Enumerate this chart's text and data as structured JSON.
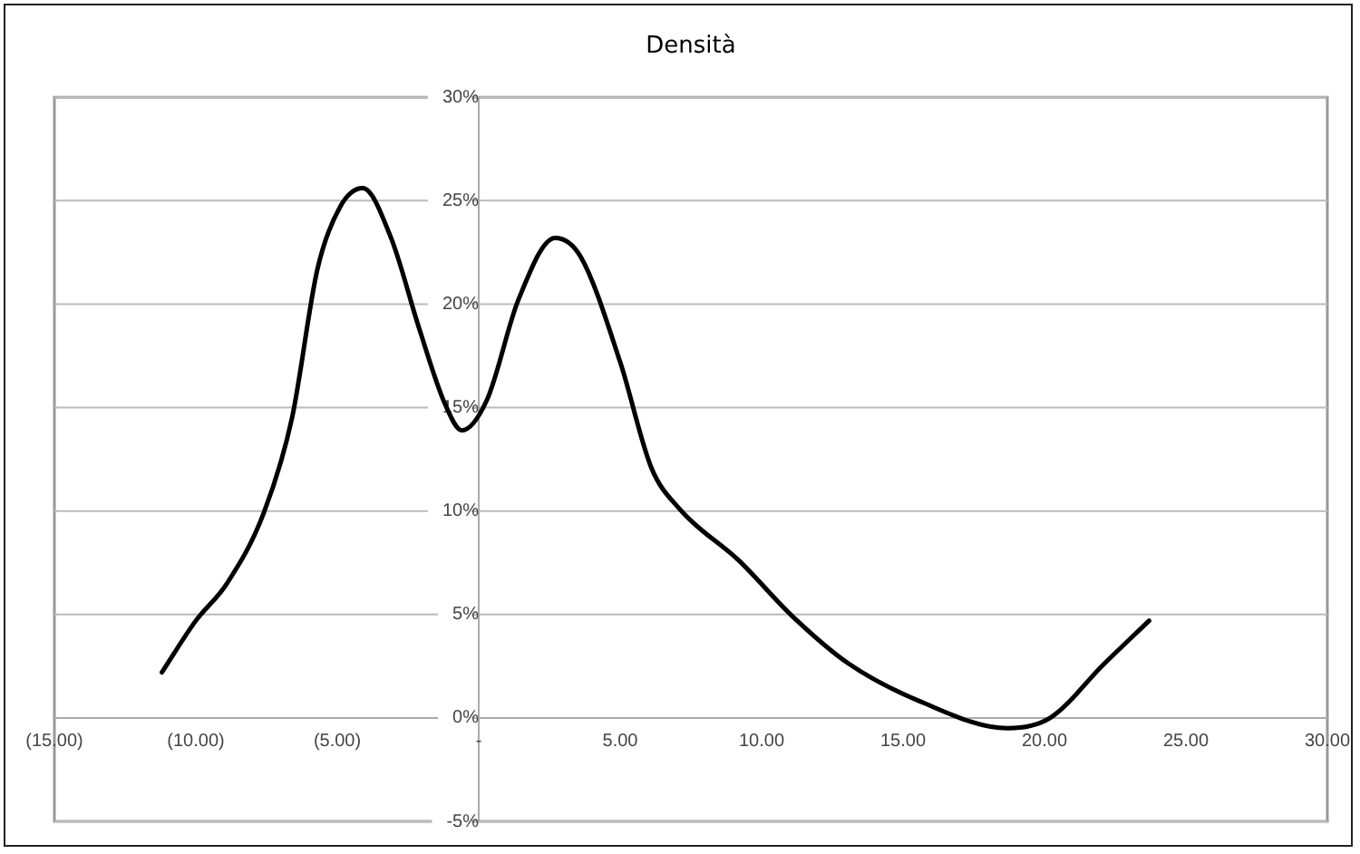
{
  "chart_data": {
    "type": "line",
    "title": "Densità",
    "series": [
      {
        "color": "#000000",
        "x": [
          -11.2,
          -10.0,
          -8.9,
          -7.6,
          -6.6,
          -5.7,
          -4.9,
          -4.1,
          -3.1,
          -2.1,
          -1.2,
          -0.6,
          0.3,
          1.4,
          2.7,
          3.6,
          5.0,
          6.1,
          7.1,
          9.2,
          11.1,
          13.1,
          15.6,
          18.7,
          20.2,
          22.1,
          23.7
        ],
        "values": [
          2.2,
          4.7,
          6.5,
          9.9,
          14.5,
          21.7,
          24.7,
          25.6,
          23.2,
          18.8,
          15.2,
          13.9,
          15.4,
          20.2,
          23.2,
          22.3,
          17.2,
          12.1,
          10.1,
          7.6,
          4.9,
          2.6,
          0.8,
          -0.5,
          0,
          2.6,
          4.7
        ]
      }
    ],
    "xlim": [
      -15,
      30
    ],
    "xticks": [
      {
        "value": -15,
        "label": "(15.00)"
      },
      {
        "value": -10,
        "label": "(10.00)"
      },
      {
        "value": -5,
        "label": "(5.00)"
      },
      {
        "value": 0,
        "label": "-"
      },
      {
        "value": 5,
        "label": "5.00"
      },
      {
        "value": 10,
        "label": "10.00"
      },
      {
        "value": 15,
        "label": "15.00"
      },
      {
        "value": 20,
        "label": "20.00"
      },
      {
        "value": 25,
        "label": "25.00"
      },
      {
        "value": 30,
        "label": "30.00"
      }
    ],
    "ylim": [
      -5,
      30
    ],
    "yticks": [
      {
        "value": -5,
        "label": "-5%"
      },
      {
        "value": 0,
        "label": "0%"
      },
      {
        "value": 5,
        "label": "5%"
      },
      {
        "value": 10,
        "label": "10%"
      },
      {
        "value": 15,
        "label": "15%"
      },
      {
        "value": 20,
        "label": "20%"
      },
      {
        "value": 25,
        "label": "25%"
      },
      {
        "value": 30,
        "label": "30%"
      }
    ],
    "grid": "y",
    "legend": false,
    "marker": "none",
    "line_style": "solid"
  }
}
